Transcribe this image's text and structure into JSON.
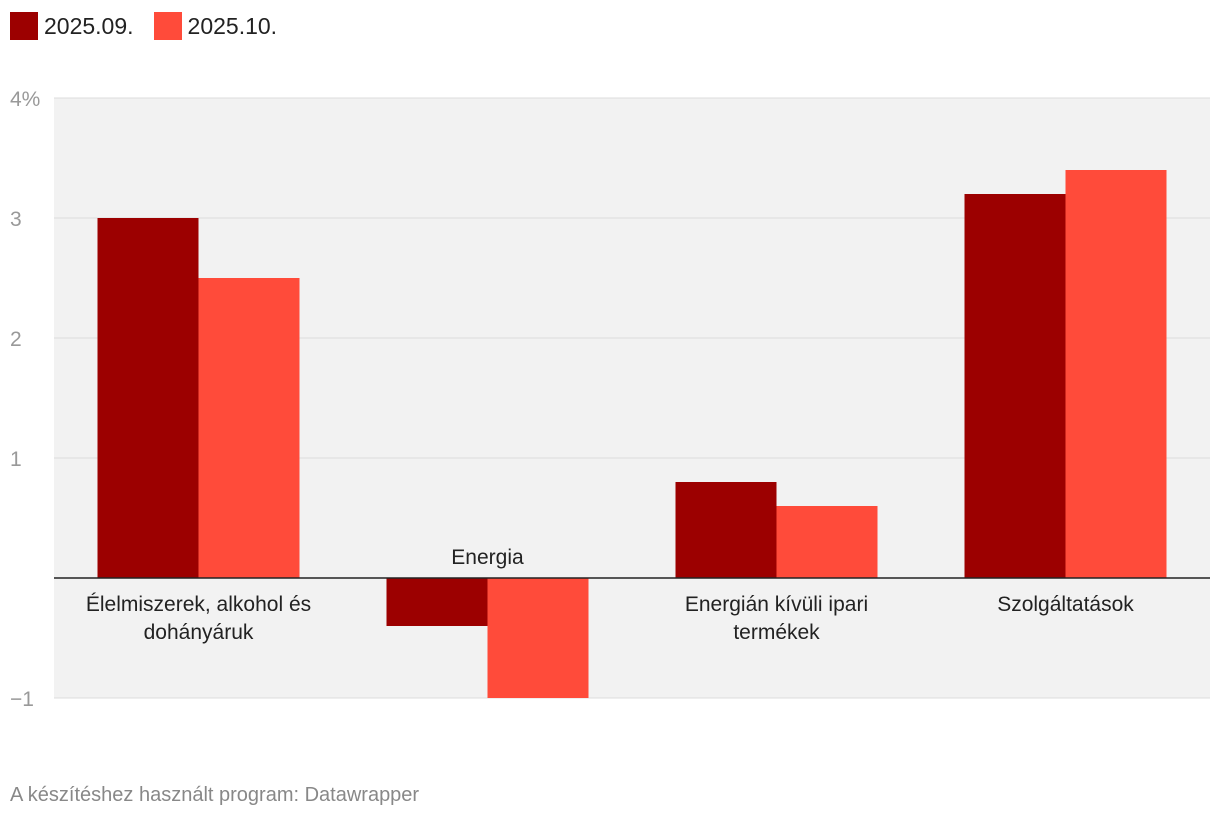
{
  "chart_data": {
    "type": "bar",
    "categories": [
      [
        "Élelmiszerek, alkohol és",
        "dohányáruk"
      ],
      [
        "Energia"
      ],
      [
        "Energián kívüli ipari",
        "termékek"
      ],
      [
        "Szolgáltatások"
      ]
    ],
    "series": [
      {
        "name": "2025.09.",
        "color": "#9c0000",
        "values": [
          3.0,
          -0.4,
          0.8,
          3.2
        ]
      },
      {
        "name": "2025.10.",
        "color": "#ff4b3a",
        "values": [
          2.5,
          -1.0,
          0.6,
          3.4
        ]
      }
    ],
    "ylim": [
      -1,
      4
    ],
    "yticks": [
      {
        "value": 4,
        "label": "4%"
      },
      {
        "value": 3,
        "label": "3"
      },
      {
        "value": 2,
        "label": "2"
      },
      {
        "value": 1,
        "label": "1"
      },
      {
        "value": -1,
        "label": "−1"
      }
    ],
    "grid": true,
    "legend_position": "top-left"
  },
  "footer": {
    "credit": "A készítéshez használt program: Datawrapper"
  }
}
